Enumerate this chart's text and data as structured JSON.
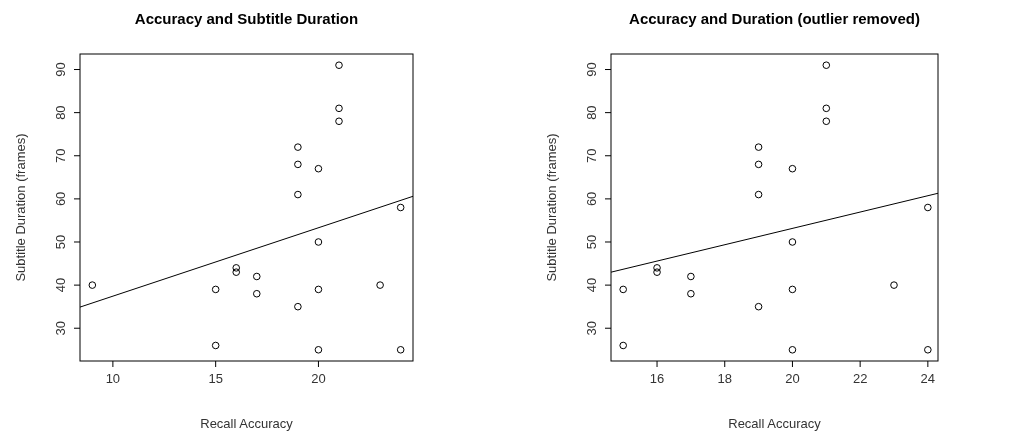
{
  "chart_data": [
    {
      "type": "scatter",
      "title": "Accuracy and Subtitle Duration",
      "xlabel": "Recall Accuracy",
      "ylabel": "Subtitle Duration (frames)",
      "xlim": [
        8.4,
        24.6
      ],
      "ylim": [
        22.4,
        93.6
      ],
      "xticks": [
        10,
        15,
        20
      ],
      "yticks": [
        30,
        40,
        50,
        60,
        70,
        80,
        90
      ],
      "series": [
        {
          "marker": "circle",
          "color": "#000000",
          "x": [
            9,
            15,
            15,
            16,
            16,
            17,
            17,
            19,
            19,
            19,
            19,
            20,
            20,
            20,
            20,
            21,
            21,
            21,
            23,
            24,
            24
          ],
          "values": [
            40,
            39,
            26,
            44,
            43,
            42,
            38,
            72,
            68,
            61,
            35,
            67,
            50,
            39,
            25,
            91,
            81,
            78,
            40,
            58,
            25
          ]
        },
        {
          "type": "line",
          "color": "#000000",
          "x": [
            8.4,
            24.6
          ],
          "values": [
            34.9,
            60.6
          ]
        }
      ]
    },
    {
      "type": "scatter",
      "title": "Accuracy and Duration (outlier removed)",
      "xlabel": "Recall Accuracy",
      "ylabel": "Subtitle Duration (frames)",
      "xlim": [
        14.64,
        24.3
      ],
      "ylim": [
        22.4,
        93.6
      ],
      "xticks": [
        16,
        18,
        20,
        22,
        24
      ],
      "yticks": [
        30,
        40,
        50,
        60,
        70,
        80,
        90
      ],
      "series": [
        {
          "marker": "circle",
          "color": "#000000",
          "x": [
            15,
            15,
            16,
            16,
            17,
            17,
            19,
            19,
            19,
            19,
            20,
            20,
            20,
            20,
            21,
            21,
            21,
            23,
            24,
            24
          ],
          "values": [
            39,
            26,
            44,
            43,
            42,
            38,
            72,
            68,
            61,
            35,
            67,
            50,
            39,
            25,
            91,
            81,
            78,
            40,
            58,
            25
          ]
        },
        {
          "type": "line",
          "color": "#000000",
          "x": [
            14.64,
            24.3
          ],
          "values": [
            43,
            61.3
          ]
        }
      ]
    }
  ]
}
